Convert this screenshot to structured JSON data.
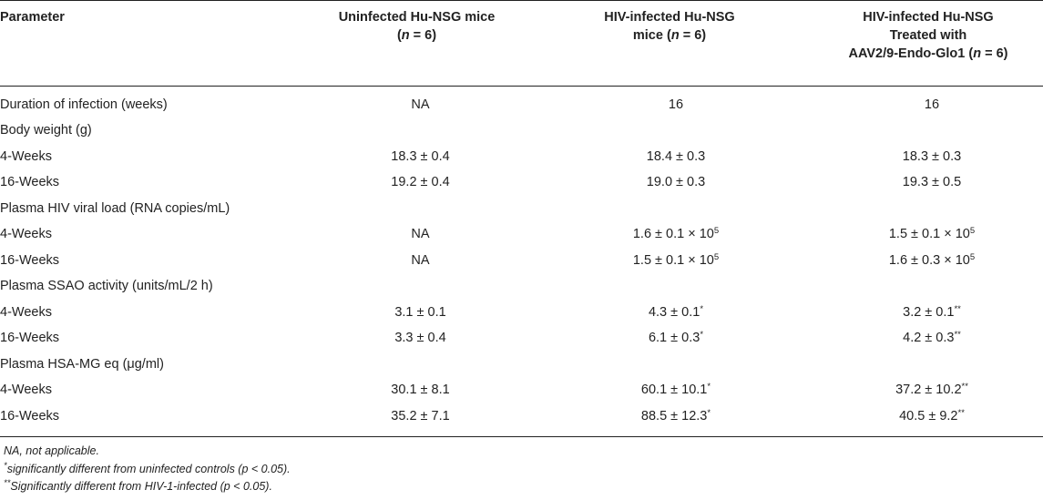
{
  "header": {
    "col0": "Parameter",
    "col1_line1": "Uninfected Hu-NSG mice",
    "col1_line2_pre": "(",
    "col1_n": "n",
    "col1_line2_post": " = 6)",
    "col2_line1": "HIV-infected Hu-NSG",
    "col2_line2_pre": "mice (",
    "col2_n": "n",
    "col2_line2_post": " = 6)",
    "col3_line1": "HIV-infected Hu-NSG",
    "col3_line2": "Treated with",
    "col3_line3_pre": "AAV2/9-Endo-Glo1 (",
    "col3_n": "n",
    "col3_line3_post": " = 6)"
  },
  "rows": [
    {
      "label": "Duration of infection (weeks)",
      "v1": "NA",
      "v2": "16",
      "v3": "16"
    },
    {
      "label": "Body weight (g)",
      "v1": "",
      "v2": "",
      "v3": ""
    },
    {
      "label": "4-Weeks",
      "v1": "18.3 ± 0.4",
      "v2": "18.4 ± 0.3",
      "v3": "18.3 ± 0.3"
    },
    {
      "label": "16-Weeks",
      "v1": "19.2 ± 0.4",
      "v2": "19.0 ± 0.3",
      "v3": "19.3 ± 0.5"
    },
    {
      "label": "Plasma HIV viral load (RNA copies/mL)",
      "v1": "",
      "v2": "",
      "v3": ""
    },
    {
      "label": "4-Weeks",
      "v1": "NA",
      "v2": "1.6 ± 0.1 × 10",
      "v2_sup": "5",
      "v3": "1.5 ± 0.1 × 10",
      "v3_sup": "5"
    },
    {
      "label": "16-Weeks",
      "v1": "NA",
      "v2": "1.5 ± 0.1 × 10",
      "v2_sup": "5",
      "v3": "1.6 ± 0.3 × 10",
      "v3_sup": "5"
    },
    {
      "label": "Plasma SSAO activity (units/mL/2 h)",
      "v1": "",
      "v2": "",
      "v3": ""
    },
    {
      "label": "4-Weeks",
      "v1": "3.1 ± 0.1",
      "v2": "4.3 ± 0.1",
      "v2_sup": "*",
      "v3": "3.2 ± 0.1",
      "v3_sup": "**"
    },
    {
      "label": "16-Weeks",
      "v1": "3.3 ± 0.4",
      "v2": "6.1 ± 0.3",
      "v2_sup": "*",
      "v3": "4.2 ± 0.3",
      "v3_sup": "**"
    },
    {
      "label": "Plasma HSA-MG eq (μg/ml)",
      "v1": "",
      "v2": "",
      "v3": ""
    },
    {
      "label": "4-Weeks",
      "v1": "30.1 ± 8.1",
      "v2": "60.1 ± 10.1",
      "v2_sup": "*",
      "v3": "37.2 ± 10.2",
      "v3_sup": "**"
    },
    {
      "label": "16-Weeks",
      "v1": "35.2 ± 7.1",
      "v2": "88.5 ± 12.3",
      "v2_sup": "*",
      "v3": "40.5 ± 9.2",
      "v3_sup": "**"
    }
  ],
  "footnotes": {
    "na": "NA, not applicable.",
    "star_mark": "*",
    "star_text": "significantly different from uninfected controls (p < 0.05).",
    "dstar_mark": "**",
    "dstar_text": "Significantly different from HIV-1-infected (p < 0.05)."
  }
}
